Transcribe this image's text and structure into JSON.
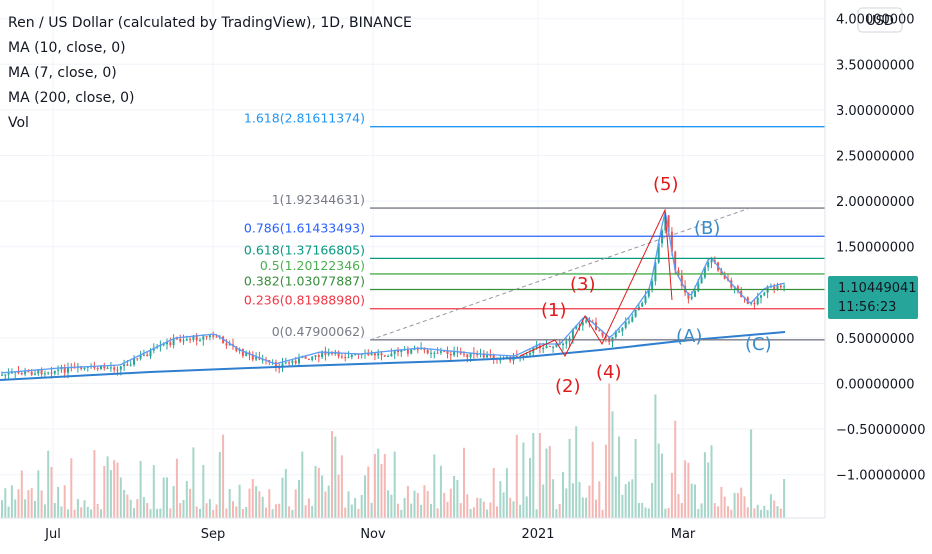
{
  "header": {
    "title": "Ren / US Dollar (calculated by TradingView), 1D, BINANCE",
    "indicators": [
      "MA (10, close, 0)",
      "MA (7, close, 0)",
      "MA (200, close, 0)",
      "Vol"
    ]
  },
  "currency_button": "USD",
  "y_axis": {
    "ticks": [
      {
        "value": 4.0,
        "label": "4.00000000"
      },
      {
        "value": 3.5,
        "label": "3.50000000"
      },
      {
        "value": 3.0,
        "label": "3.00000000"
      },
      {
        "value": 2.5,
        "label": "2.50000000"
      },
      {
        "value": 2.0,
        "label": "2.00000000"
      },
      {
        "value": 1.5,
        "label": "1.50000000"
      },
      {
        "value": 0.5,
        "label": "0.50000000"
      },
      {
        "value": 0,
        "label": "0.00000000"
      },
      {
        "value": -0.5,
        "label": "−0.50000000"
      },
      {
        "value": -1.0,
        "label": "−1.00000000"
      }
    ]
  },
  "x_axis": {
    "labels": [
      "Jul",
      "Sep",
      "Nov",
      "2021",
      "Mar"
    ]
  },
  "price_tag": {
    "price": "1.10449041",
    "countdown": "11:56:23"
  },
  "fib_levels": [
    {
      "label": "1.618(2.81611374)",
      "value": 2.81611374,
      "color": "#2196f3"
    },
    {
      "label": "1(1.92344631)",
      "value": 1.92344631,
      "color": "#787b86"
    },
    {
      "label": "0.786(1.61433493)",
      "value": 1.61433493,
      "color": "#2962ff"
    },
    {
      "label": "0.618(1.37166805)",
      "value": 1.37166805,
      "color": "#089981"
    },
    {
      "label": "0.5(1.20122346)",
      "value": 1.20122346,
      "color": "#4caf50"
    },
    {
      "label": "0.382(1.03077887)",
      "value": 1.03077887,
      "color": "#388e3c"
    },
    {
      "label": "0.236(0.81988980)",
      "value": 0.8198898,
      "color": "#f23645"
    },
    {
      "label": "0(0.47900062)",
      "value": 0.47900062,
      "color": "#787b86"
    }
  ],
  "waves": {
    "impulse": [
      "(1)",
      "(2)",
      "(3)",
      "(4)",
      "(5)"
    ],
    "correction": [
      "(A)",
      "(B)",
      "(C)"
    ]
  }
}
